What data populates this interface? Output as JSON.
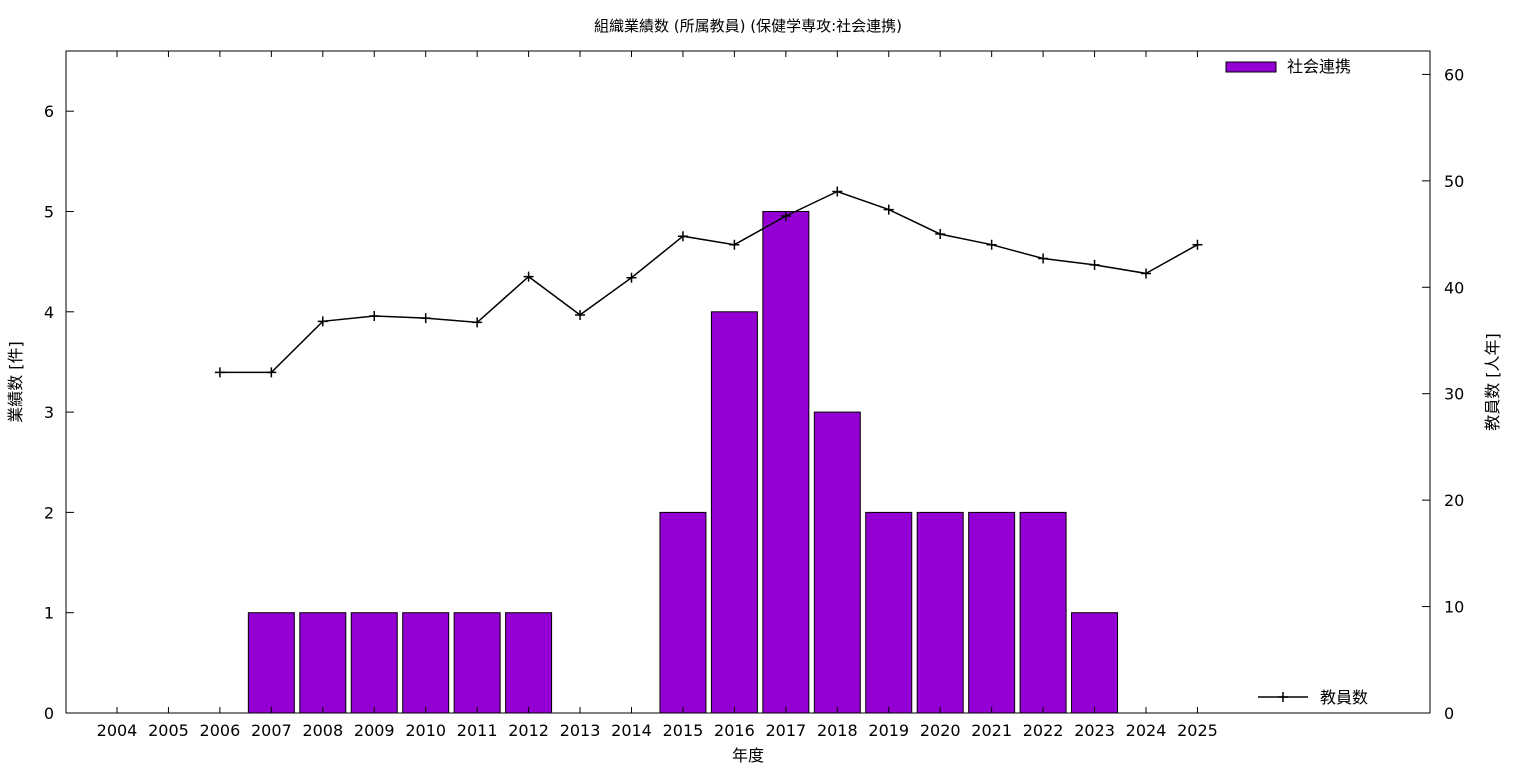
{
  "chart_data": {
    "type": "bar",
    "title": "組織業績数 (所属教員) (保健学専攻:社会連携)",
    "xlabel": "年度",
    "ylabel": "業績数 [件]",
    "y2label": "教員数 [人年]",
    "ylim": [
      0,
      6.6
    ],
    "y2lim": [
      0,
      62.2
    ],
    "yticks": [
      0,
      1,
      2,
      3,
      4,
      5,
      6
    ],
    "y2ticks": [
      0,
      10,
      20,
      30,
      40,
      50,
      60
    ],
    "legend_top_right": true,
    "legend_line_position": "bottom-right",
    "bar_color": "#9400d3",
    "line_color": "#000000",
    "categories": [
      "2004",
      "2005",
      "2006",
      "2007",
      "2008",
      "2009",
      "2010",
      "2011",
      "2012",
      "2013",
      "2014",
      "2015",
      "2016",
      "2017",
      "2018",
      "2019",
      "2020",
      "2021",
      "2022",
      "2023",
      "2024",
      "2025"
    ],
    "series": [
      {
        "name": "社会連携",
        "type": "bar",
        "axis": "left",
        "values": [
          0,
          0,
          0,
          1,
          1,
          1,
          1,
          1,
          1,
          0,
          0,
          2,
          4,
          5,
          3,
          2,
          2,
          2,
          2,
          1,
          0,
          0
        ]
      },
      {
        "name": "教員数",
        "type": "line",
        "axis": "right",
        "values": [
          null,
          null,
          32.0,
          32.0,
          36.8,
          37.3,
          37.1,
          36.7,
          41.0,
          37.4,
          40.9,
          44.8,
          44.0,
          46.7,
          49.0,
          47.3,
          45.0,
          44.0,
          42.7,
          42.1,
          41.3,
          44.0
        ]
      }
    ]
  }
}
